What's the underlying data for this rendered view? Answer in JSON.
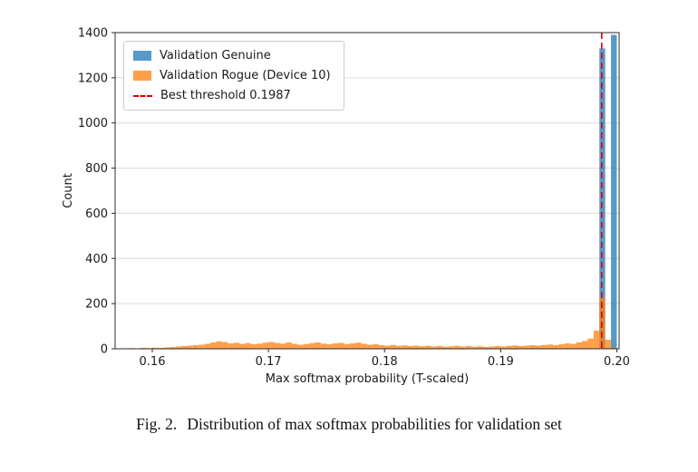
{
  "caption": {
    "label": "Fig. 2.",
    "text": "Distribution of max softmax probabilities for validation set"
  },
  "chart_data": {
    "type": "bar",
    "subtype": "histogram",
    "title": "",
    "xlabel": "Max softmax probability (T-scaled)",
    "ylabel": "Count",
    "xlim": [
      0.1568,
      0.2002
    ],
    "ylim": [
      0,
      1400
    ],
    "xticks": [
      0.16,
      0.17,
      0.18,
      0.19,
      0.2
    ],
    "xtick_labels": [
      "0.16",
      "0.17",
      "0.18",
      "0.19",
      "0.20"
    ],
    "yticks": [
      0,
      200,
      400,
      600,
      800,
      1000,
      1200,
      1400
    ],
    "grid": "horizontal",
    "grid_color": "#dcdcdc",
    "spine_color": "#2b2b2b",
    "bin_start": 0.1575,
    "bin_width": 0.0005,
    "series": [
      {
        "name": "Validation Genuine",
        "color": "#1f77b4",
        "alpha": 0.75,
        "counts": [
          0,
          0,
          0,
          0,
          0,
          0,
          0,
          0,
          0,
          0,
          0,
          0,
          0,
          0,
          0,
          0,
          0,
          0,
          0,
          0,
          0,
          0,
          0,
          0,
          0,
          0,
          0,
          0,
          0,
          0,
          0,
          0,
          0,
          0,
          0,
          0,
          0,
          0,
          0,
          0,
          0,
          0,
          0,
          0,
          0,
          0,
          0,
          0,
          0,
          0,
          0,
          0,
          0,
          0,
          0,
          0,
          0,
          0,
          0,
          0,
          0,
          0,
          0,
          0,
          0,
          0,
          0,
          0,
          0,
          0,
          0,
          0,
          0,
          0,
          0,
          0,
          0,
          0,
          0,
          0,
          0,
          0,
          1330,
          0,
          1390
        ]
      },
      {
        "name": "Validation Rogue (Device 10)",
        "color": "#ff7f0e",
        "alpha": 0.75,
        "counts": [
          2,
          3,
          2,
          4,
          3,
          5,
          4,
          6,
          8,
          10,
          12,
          14,
          16,
          18,
          22,
          28,
          33,
          30,
          24,
          27,
          22,
          25,
          20,
          23,
          27,
          30,
          26,
          23,
          28,
          22,
          18,
          21,
          25,
          28,
          23,
          20,
          24,
          26,
          21,
          24,
          27,
          22,
          18,
          20,
          16,
          14,
          17,
          13,
          15,
          12,
          14,
          11,
          13,
          10,
          12,
          9,
          11,
          13,
          10,
          12,
          9,
          11,
          8,
          10,
          12,
          10,
          13,
          15,
          12,
          14,
          16,
          14,
          17,
          19,
          16,
          20,
          24,
          22,
          28,
          35,
          45,
          80,
          225,
          40,
          5
        ]
      }
    ],
    "threshold": {
      "label": "Best threshold 0.1987",
      "value": 0.1987,
      "color": "#e00000",
      "style": "dashed"
    },
    "legend_position": "upper left"
  }
}
